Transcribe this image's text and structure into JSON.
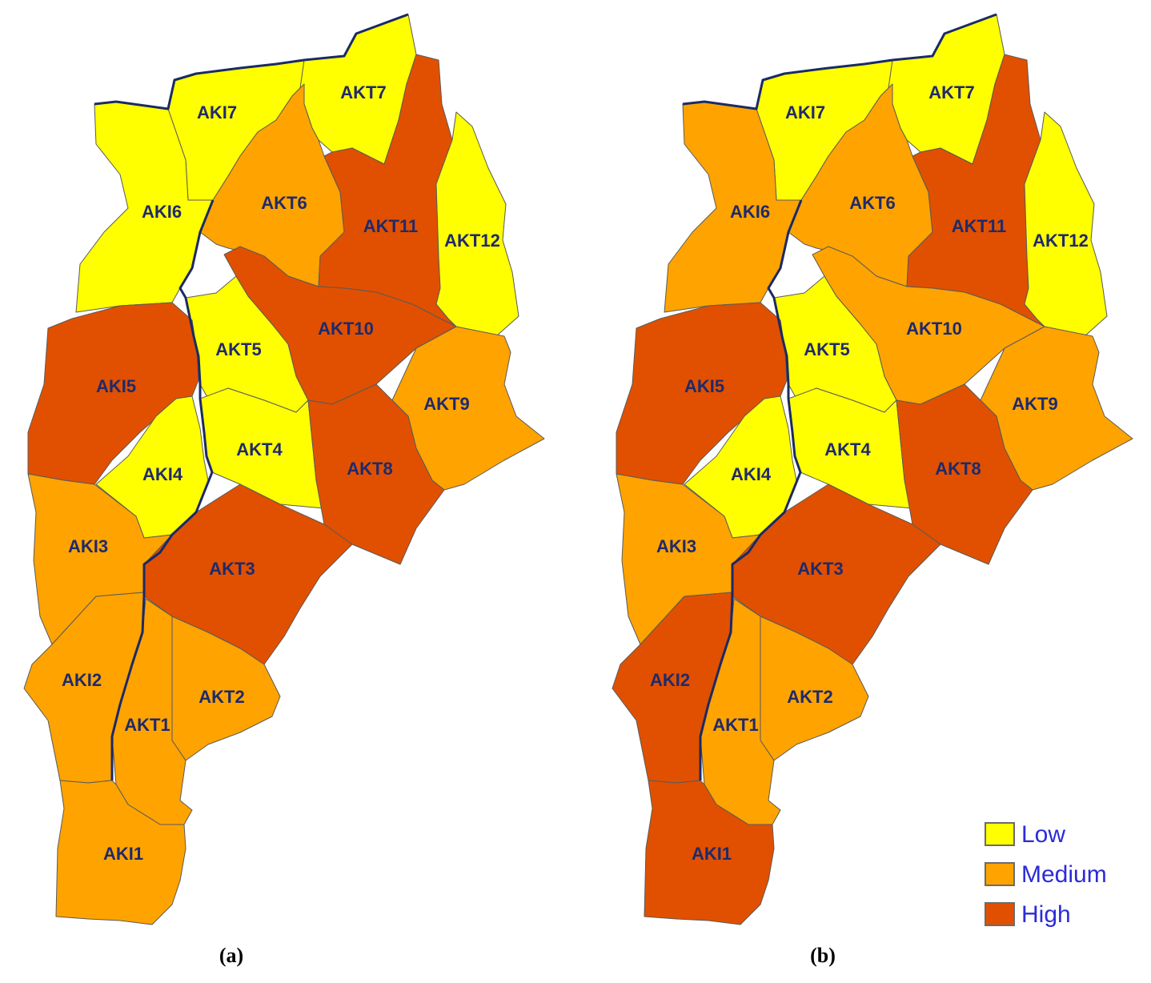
{
  "colors": {
    "Low": "#ffff00",
    "Medium": "#ffa300",
    "High": "#e05000"
  },
  "maps": [
    {
      "caption": "(a)",
      "zones": {
        "AKI7": "Low",
        "AKT7": "Low",
        "AKI6": "Low",
        "AKT6": "Medium",
        "AKT11": "High",
        "AKT12": "Low",
        "AKT5": "Low",
        "AKT10": "High",
        "AKI5": "High",
        "AKT9": "Medium",
        "AKT4": "Low",
        "AKI4": "Low",
        "AKT8": "High",
        "AKI3": "Medium",
        "AKT3": "High",
        "AKI2": "Medium",
        "AKT2": "Medium",
        "AKT1": "Medium",
        "AKI1": "Medium"
      }
    },
    {
      "caption": "(b)",
      "zones": {
        "AKI7": "Low",
        "AKT7": "Low",
        "AKI6": "Medium",
        "AKT6": "Medium",
        "AKT11": "High",
        "AKT12": "Low",
        "AKT5": "Low",
        "AKT10": "Medium",
        "AKI5": "High",
        "AKT9": "Medium",
        "AKT4": "Low",
        "AKI4": "Low",
        "AKT8": "High",
        "AKI3": "Medium",
        "AKT3": "High",
        "AKI2": "High",
        "AKT2": "Medium",
        "AKT1": "Medium",
        "AKI1": "High"
      }
    }
  ],
  "legend": [
    {
      "label": "Low",
      "level": "Low"
    },
    {
      "label": "Medium",
      "level": "Medium"
    },
    {
      "label": "High",
      "level": "High"
    }
  ]
}
